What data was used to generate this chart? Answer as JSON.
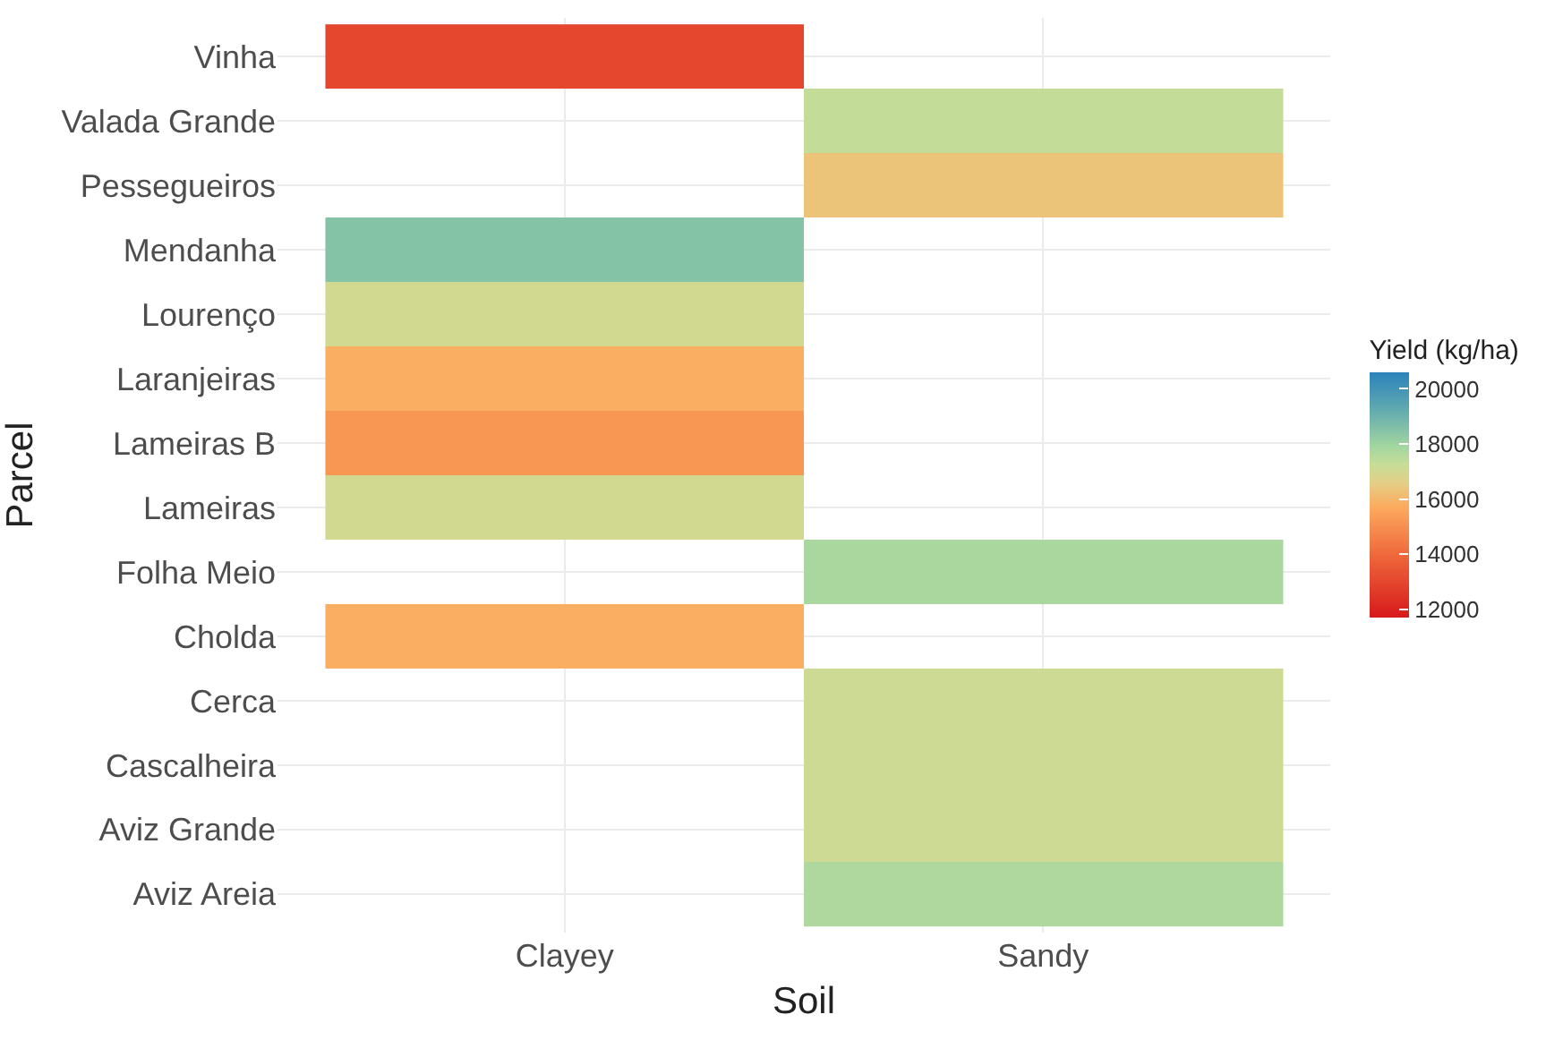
{
  "chart_data": {
    "type": "heatmap",
    "xlabel": "Soil",
    "ylabel": "Parcel",
    "clabel": "Yield (kg/ha)",
    "categories": [
      "Clayey",
      "Sandy"
    ],
    "y_categories": [
      "Vinha",
      "Valada Grande",
      "Pessegueiros",
      "Mendanha",
      "Lourenço",
      "Laranjeiras",
      "Lameiras B",
      "Lameiras",
      "Folha Meio",
      "Cholda",
      "Cerca",
      "Cascalheira",
      "Aviz Grande",
      "Aviz Areia"
    ],
    "cells": [
      [
        13000,
        null
      ],
      [
        null,
        17300
      ],
      [
        null,
        16300
      ],
      [
        18500,
        null
      ],
      [
        17000,
        null
      ],
      [
        15800,
        null
      ],
      [
        15200,
        null
      ],
      [
        17000,
        null
      ],
      [
        null,
        17800
      ],
      [
        15800,
        null
      ],
      [
        null,
        17100
      ],
      [
        null,
        17100
      ],
      [
        null,
        17100
      ],
      [
        null,
        17700
      ]
    ],
    "clim": [
      11700,
      20600
    ],
    "cticks": [
      12000,
      14000,
      16000,
      18000,
      20000
    ],
    "grid": true
  }
}
